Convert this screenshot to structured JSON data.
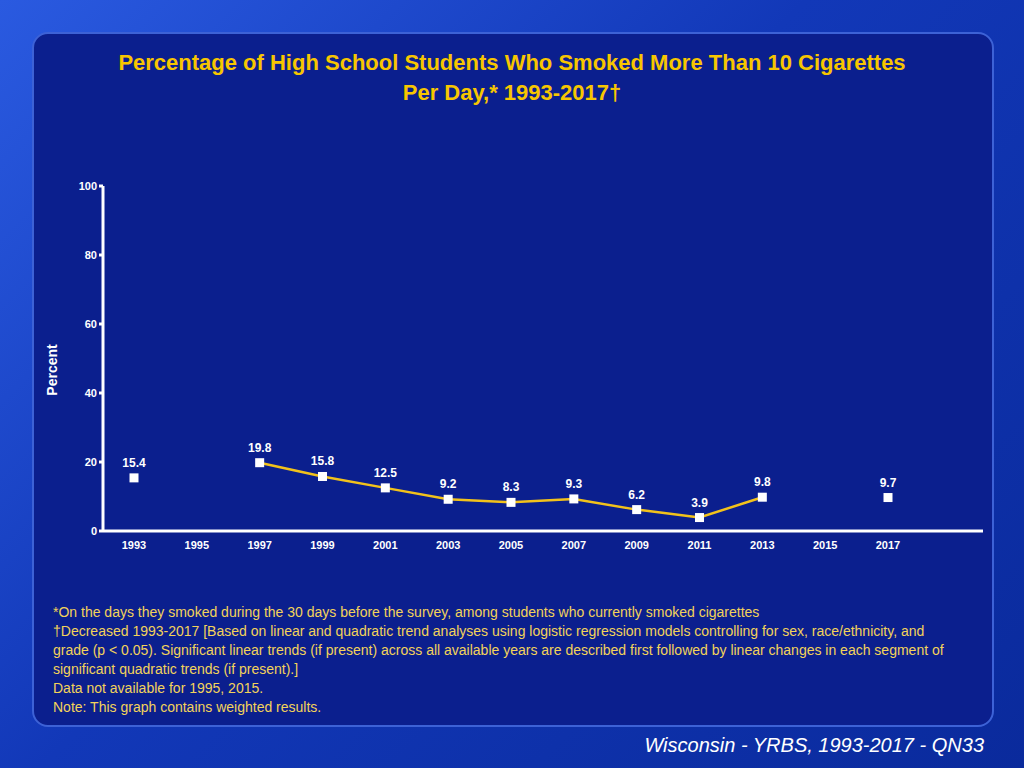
{
  "chart_data": {
    "type": "line",
    "title": "Percentage of High School Students Who Smoked More Than 10 Cigarettes Per Day,* 1993-2017†",
    "y_label": "Percent",
    "categories": [
      "1993",
      "1995",
      "1997",
      "1999",
      "2001",
      "2003",
      "2005",
      "2007",
      "2009",
      "2011",
      "2013",
      "2015",
      "2017"
    ],
    "values": [
      15.4,
      null,
      19.8,
      15.8,
      12.5,
      9.2,
      8.3,
      9.3,
      6.2,
      3.9,
      9.8,
      null,
      9.7
    ],
    "color": "#f2c21b",
    "marker": "square",
    "ylim": [
      0,
      100
    ],
    "yticks": [
      0,
      20,
      40,
      60,
      80,
      100
    ],
    "grid": false,
    "data_labels": true,
    "footnotes": [
      "*On the days they smoked during the 30 days before the survey, among students who currently smoked cigarettes",
      "†Decreased 1993-2017 [Based on linear and quadratic trend analyses using logistic regression models controlling for sex, race/ethnicity, and grade (p < 0.05). Significant linear trends (if present) across all available years are described first followed by linear changes in each segment of significant quadratic trends (if present).]",
      "Data not available for 1995, 2015.",
      "Note: This graph contains weighted results."
    ],
    "source": "Wisconsin - YRBS, 1993-2017 - QN33"
  }
}
